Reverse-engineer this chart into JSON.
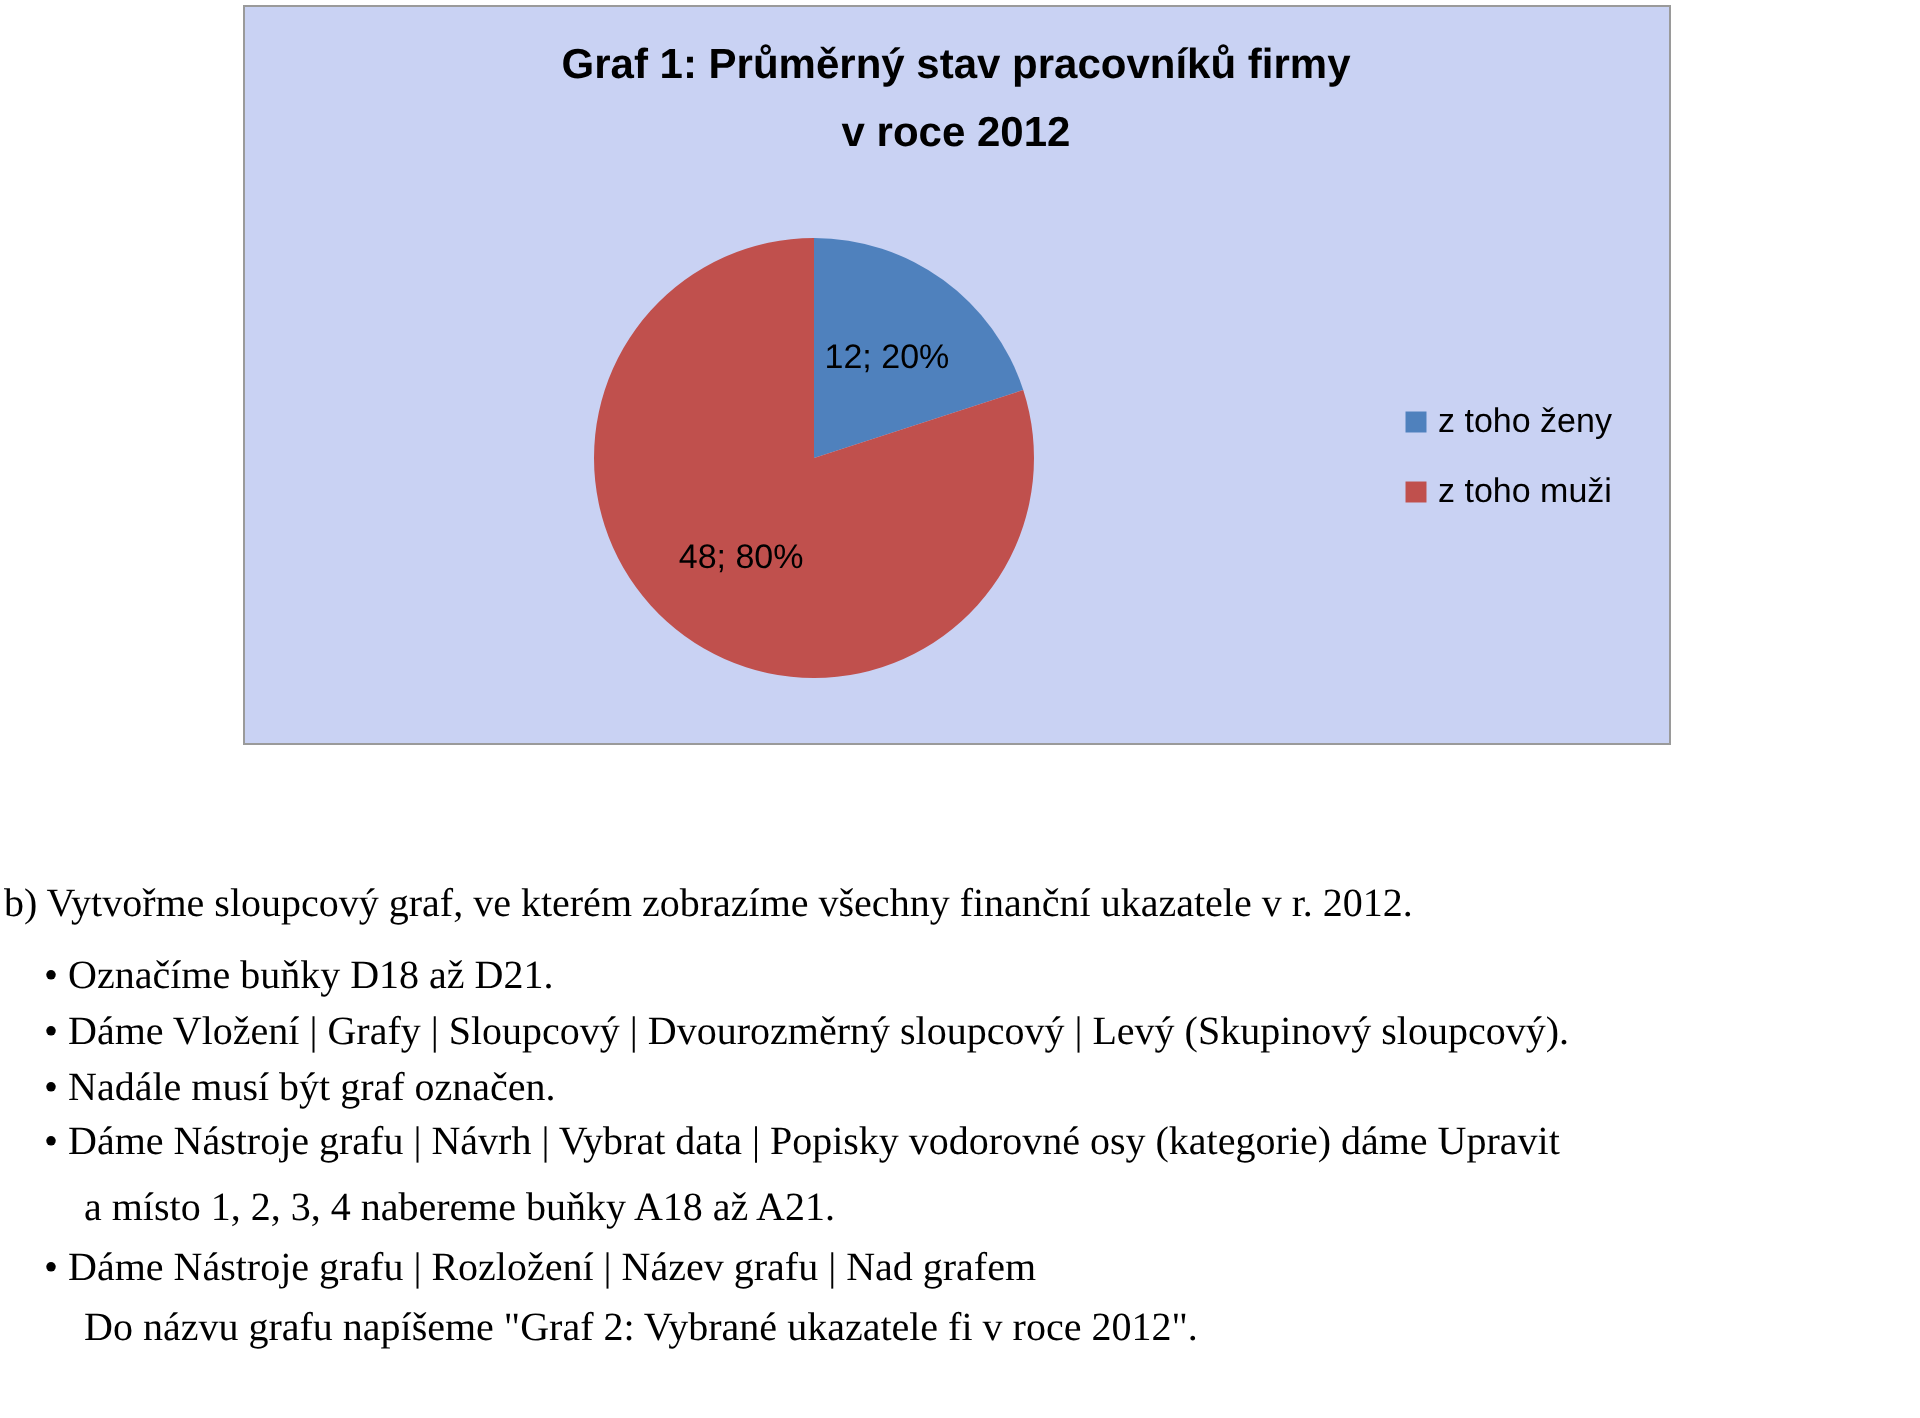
{
  "chart_data": {
    "type": "pie",
    "title": [
      "Graf 1: Průměrný stav pracovníků firmy",
      "v roce 2012"
    ],
    "categories": [
      "z toho ženy",
      "z toho muži"
    ],
    "values": [
      12,
      48
    ],
    "colors": [
      "#4f81bd",
      "#c0504d"
    ],
    "value_labels": [
      "12; 20%",
      "48; 80%"
    ],
    "legend": "right",
    "annotations": [
      "b) Vytvořme sloupcový graf, ve kterém zobrazíme všechny finanční ukazatele v r. 2012.",
      "• Označíme buňky D18 až D21.",
      "• Dáme Vložení | Grafy | Sloupcový | Dvourozměrný sloupcový | Levý (Skupinový sloupcový).",
      "• Nadále musí být graf označen.",
      "• Dáme Nástroje grafu | Návrh | Vybrat data | Popisky vodorovné osy (kategorie) dáme Upravit",
      "a místo 1, 2, 3, 4 nabereme buňky A18 až A21.",
      "• Dáme Nástroje grafu | Rozložení | Název grafu | Nad grafem",
      "Do názvu grafu napíšeme \"Graf 2: Vybrané ukazatele fi v roce 2012\"."
    ]
  }
}
